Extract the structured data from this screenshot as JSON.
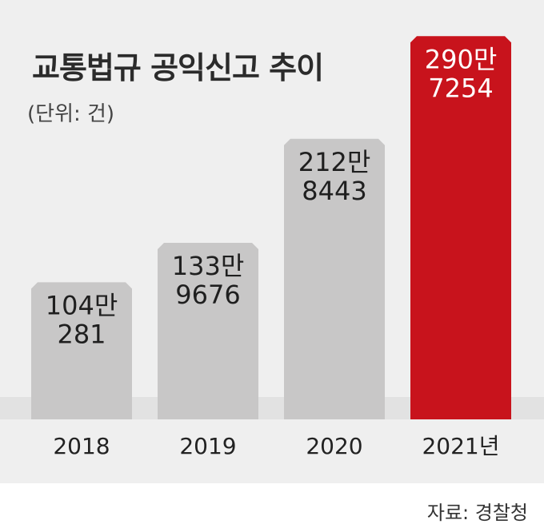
{
  "title": "교통법규 공익신고 추이",
  "unit": "(단위: 건)",
  "source": "자료: 경찰청",
  "chart_data": {
    "type": "bar",
    "categories": [
      "2018",
      "2019",
      "2020",
      "2021년"
    ],
    "values": [
      1040281,
      1339676,
      2128443,
      2907254
    ],
    "value_labels": [
      [
        "104만",
        "281"
      ],
      [
        "133만",
        "9676"
      ],
      [
        "212만",
        "8443"
      ],
      [
        "290만",
        "7254"
      ]
    ],
    "title": "교통법규 공익신고 추이",
    "ylabel": "",
    "ylim": [
      0,
      3000000
    ],
    "grid": false,
    "highlight_index": 3,
    "colors": {
      "bar": "#c8c7c7",
      "highlight": "#c8131c",
      "label": "#1f1f1f",
      "highlight_label": "#ffffff"
    }
  }
}
